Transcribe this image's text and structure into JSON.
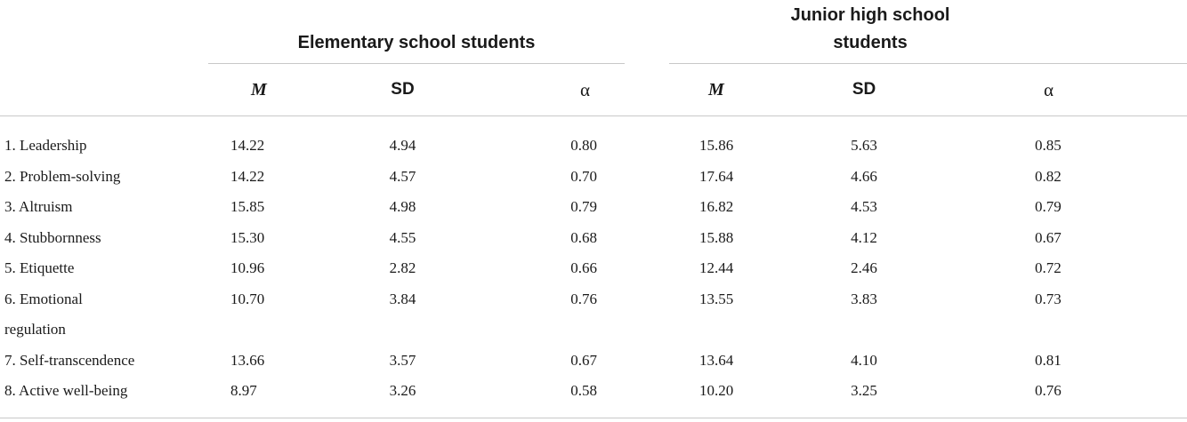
{
  "groups": {
    "elementary": "Elementary school students",
    "junior": "Junior high school students"
  },
  "columns": {
    "m": "M",
    "sd": "SD",
    "alpha": "α"
  },
  "rows": [
    {
      "label": "1. Leadership",
      "e_m": "14.22",
      "e_sd": "4.94",
      "e_a": "0.80",
      "j_m": "15.86",
      "j_sd": "5.63",
      "j_a": "0.85"
    },
    {
      "label": "2. Problem-solving",
      "e_m": "14.22",
      "e_sd": "4.57",
      "e_a": "0.70",
      "j_m": "17.64",
      "j_sd": "4.66",
      "j_a": "0.82"
    },
    {
      "label": "3. Altruism",
      "e_m": "15.85",
      "e_sd": "4.98",
      "e_a": "0.79",
      "j_m": "16.82",
      "j_sd": "4.53",
      "j_a": "0.79"
    },
    {
      "label": "4. Stubbornness",
      "e_m": "15.30",
      "e_sd": "4.55",
      "e_a": "0.68",
      "j_m": "15.88",
      "j_sd": "4.12",
      "j_a": "0.67"
    },
    {
      "label": "5. Etiquette",
      "e_m": "10.96",
      "e_sd": "2.82",
      "e_a": "0.66",
      "j_m": "12.44",
      "j_sd": "2.46",
      "j_a": "0.72"
    },
    {
      "label": "6. Emotional regulation",
      "e_m": "10.70",
      "e_sd": "3.84",
      "e_a": "0.76",
      "j_m": "13.55",
      "j_sd": "3.83",
      "j_a": "0.73"
    },
    {
      "label": "7. Self-transcendence",
      "e_m": "13.66",
      "e_sd": "3.57",
      "e_a": "0.67",
      "j_m": "13.64",
      "j_sd": "4.10",
      "j_a": "0.81"
    },
    {
      "label": "8. Active well-being",
      "e_m": "8.97",
      "e_sd": "3.26",
      "e_a": "0.58",
      "j_m": "10.20",
      "j_sd": "3.25",
      "j_a": "0.76"
    }
  ]
}
